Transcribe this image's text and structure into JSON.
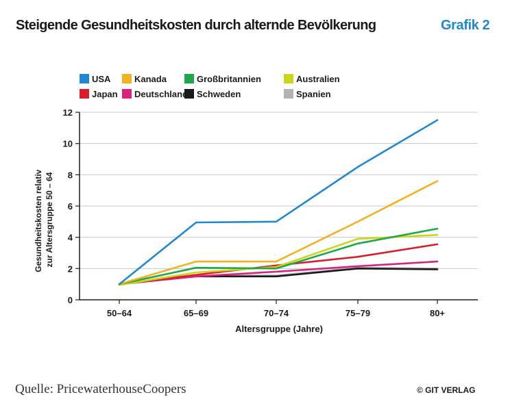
{
  "header": {
    "title": "Steigende Gesundheitskosten durch alternde Bevölkerung",
    "badge": "Grafik 2",
    "badge_color": "#1f88cf"
  },
  "footer": {
    "source": "Quelle: PricewaterhouseCoopers",
    "copyright": "© GIT VERLAG"
  },
  "chart_data": {
    "type": "line",
    "title": "",
    "xlabel": "Altersgruppe (Jahre)",
    "ylabel_lines": [
      "Gesundheitskosten relativ",
      "zur Altersgruppe 50 – 64"
    ],
    "categories": [
      "50–64",
      "65–69",
      "70–74",
      "75–79",
      "80+"
    ],
    "ylim": [
      0,
      12
    ],
    "yticks": [
      0,
      2,
      4,
      6,
      8,
      10,
      12
    ],
    "grid": true,
    "legend_position": "top",
    "series": [
      {
        "name": "USA",
        "color": "#1f88cf",
        "values": [
          1.0,
          4.95,
          5.0,
          8.5,
          11.5
        ]
      },
      {
        "name": "Kanada",
        "color": "#f3b221",
        "values": [
          1.0,
          2.45,
          2.45,
          5.0,
          7.6
        ]
      },
      {
        "name": "Großbritannien",
        "color": "#1ea84a",
        "values": [
          1.0,
          2.05,
          2.0,
          3.6,
          4.55
        ]
      },
      {
        "name": "Australien",
        "color": "#cdd41c",
        "values": [
          0.95,
          1.75,
          2.1,
          3.9,
          4.15
        ]
      },
      {
        "name": "Japan",
        "color": "#d9202a",
        "values": [
          1.0,
          1.6,
          2.2,
          2.75,
          3.55
        ]
      },
      {
        "name": "Deutschland",
        "color": "#d8237e",
        "values": [
          1.0,
          1.5,
          1.8,
          2.15,
          2.45
        ]
      },
      {
        "name": "Schweden",
        "color": "#1a1a1a",
        "values": [
          1.0,
          1.5,
          1.5,
          2.0,
          1.95
        ]
      },
      {
        "name": "Spanien",
        "color": "#b3b3b3",
        "values": [
          1.0,
          1.55,
          1.55,
          2.05,
          2.0
        ]
      }
    ]
  }
}
